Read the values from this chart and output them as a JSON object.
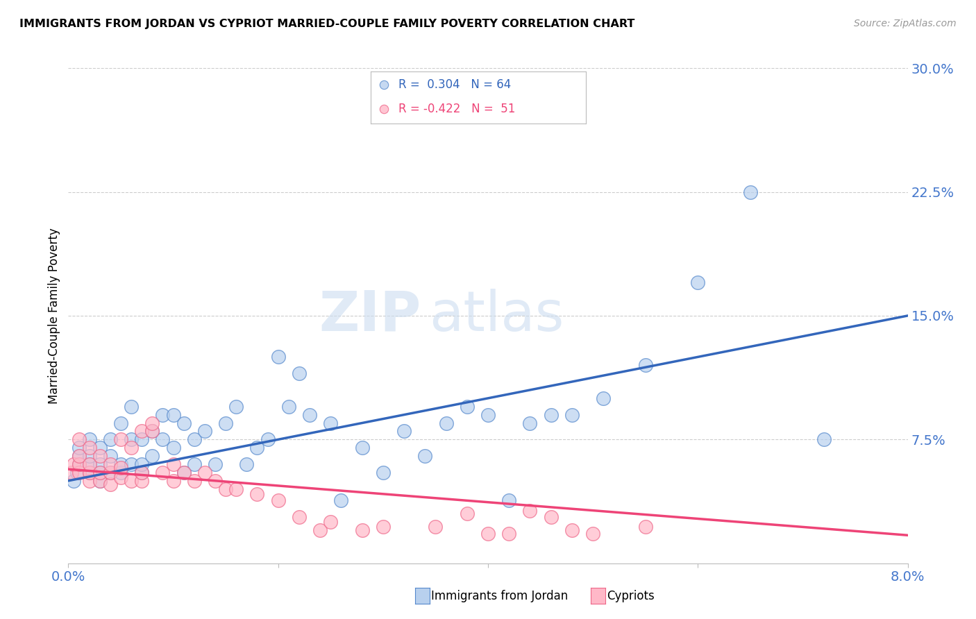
{
  "title": "IMMIGRANTS FROM JORDAN VS CYPRIOT MARRIED-COUPLE FAMILY POVERTY CORRELATION CHART",
  "source": "Source: ZipAtlas.com",
  "ylabel": "Married-Couple Family Poverty",
  "xmin": 0.0,
  "xmax": 0.08,
  "ymin": 0.0,
  "ymax": 0.3,
  "yticks_right": [
    0.075,
    0.15,
    0.225,
    0.3
  ],
  "ytick_labels_right": [
    "7.5%",
    "15.0%",
    "22.5%",
    "30.0%"
  ],
  "grid_color": "#cccccc",
  "background_color": "#ffffff",
  "blue_fill": "#b8d0ee",
  "blue_edge": "#5588cc",
  "pink_fill": "#ffb8c8",
  "pink_edge": "#ee6688",
  "blue_line_color": "#3366bb",
  "pink_line_color": "#ee4477",
  "tick_label_color": "#4477cc",
  "label_blue": "Immigrants from Jordan",
  "label_pink": "Cypriots",
  "watermark_zip": "ZIP",
  "watermark_atlas": "atlas",
  "blue_scatter_x": [
    0.0005,
    0.0008,
    0.001,
    0.001,
    0.001,
    0.002,
    0.002,
    0.002,
    0.002,
    0.003,
    0.003,
    0.003,
    0.003,
    0.004,
    0.004,
    0.004,
    0.005,
    0.005,
    0.005,
    0.006,
    0.006,
    0.006,
    0.007,
    0.007,
    0.007,
    0.008,
    0.008,
    0.009,
    0.009,
    0.01,
    0.01,
    0.011,
    0.011,
    0.012,
    0.012,
    0.013,
    0.014,
    0.015,
    0.016,
    0.017,
    0.018,
    0.019,
    0.02,
    0.021,
    0.022,
    0.023,
    0.025,
    0.026,
    0.028,
    0.03,
    0.032,
    0.034,
    0.036,
    0.038,
    0.04,
    0.042,
    0.044,
    0.046,
    0.048,
    0.051,
    0.055,
    0.06,
    0.065,
    0.072
  ],
  "blue_scatter_y": [
    0.05,
    0.055,
    0.06,
    0.065,
    0.07,
    0.055,
    0.06,
    0.065,
    0.075,
    0.05,
    0.055,
    0.06,
    0.07,
    0.055,
    0.065,
    0.075,
    0.055,
    0.06,
    0.085,
    0.06,
    0.075,
    0.095,
    0.055,
    0.06,
    0.075,
    0.065,
    0.08,
    0.075,
    0.09,
    0.07,
    0.09,
    0.055,
    0.085,
    0.06,
    0.075,
    0.08,
    0.06,
    0.085,
    0.095,
    0.06,
    0.07,
    0.075,
    0.125,
    0.095,
    0.115,
    0.09,
    0.085,
    0.038,
    0.07,
    0.055,
    0.08,
    0.065,
    0.085,
    0.095,
    0.09,
    0.038,
    0.085,
    0.09,
    0.09,
    0.1,
    0.12,
    0.17,
    0.225,
    0.075
  ],
  "pink_scatter_x": [
    0.0003,
    0.0005,
    0.001,
    0.001,
    0.001,
    0.001,
    0.002,
    0.002,
    0.002,
    0.002,
    0.003,
    0.003,
    0.003,
    0.004,
    0.004,
    0.004,
    0.005,
    0.005,
    0.005,
    0.006,
    0.006,
    0.007,
    0.007,
    0.007,
    0.008,
    0.008,
    0.009,
    0.01,
    0.01,
    0.011,
    0.012,
    0.013,
    0.014,
    0.015,
    0.016,
    0.018,
    0.02,
    0.022,
    0.024,
    0.025,
    0.028,
    0.03,
    0.035,
    0.038,
    0.04,
    0.042,
    0.044,
    0.046,
    0.048,
    0.05,
    0.055
  ],
  "pink_scatter_y": [
    0.055,
    0.06,
    0.055,
    0.06,
    0.065,
    0.075,
    0.05,
    0.055,
    0.06,
    0.07,
    0.05,
    0.055,
    0.065,
    0.048,
    0.055,
    0.06,
    0.052,
    0.058,
    0.075,
    0.05,
    0.07,
    0.05,
    0.055,
    0.08,
    0.08,
    0.085,
    0.055,
    0.05,
    0.06,
    0.055,
    0.05,
    0.055,
    0.05,
    0.045,
    0.045,
    0.042,
    0.038,
    0.028,
    0.02,
    0.025,
    0.02,
    0.022,
    0.022,
    0.03,
    0.018,
    0.018,
    0.032,
    0.028,
    0.02,
    0.018,
    0.022
  ]
}
